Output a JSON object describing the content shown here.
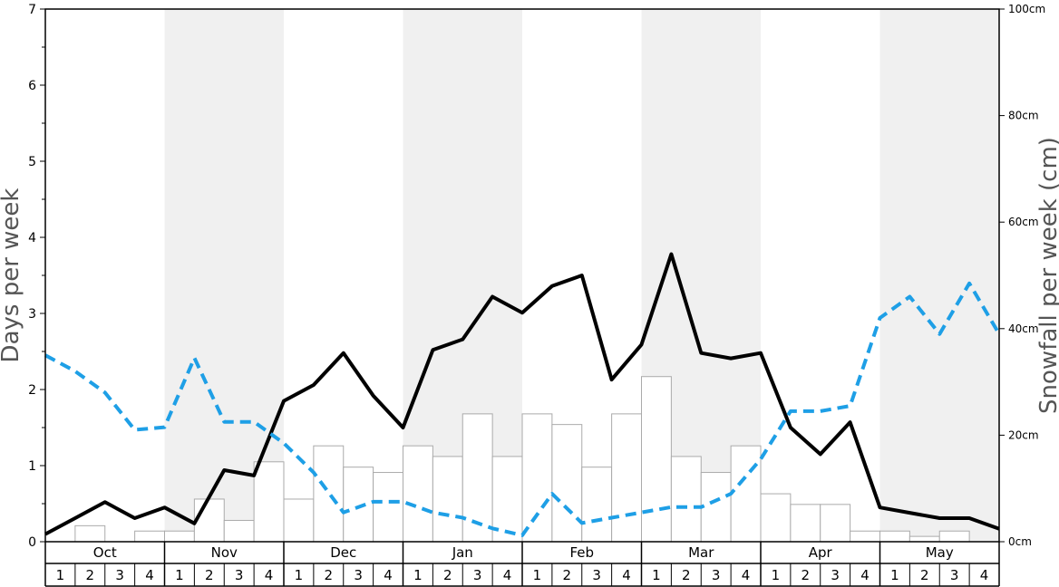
{
  "chart_data": {
    "type": "bar+line",
    "left_axis": {
      "label": "Days per week",
      "range": [
        0,
        7
      ],
      "ticks": [
        "0",
        "1",
        "2",
        "3",
        "4",
        "5",
        "6",
        "7"
      ],
      "minor_ticks": [
        0.5,
        1.5,
        2.5,
        3.5,
        4.5,
        5.5,
        6.5
      ]
    },
    "right_axis": {
      "label": "Snowfall per week (cm)",
      "range": [
        0,
        100
      ],
      "ticks": [
        "0cm",
        "20cm",
        "40cm",
        "60cm",
        "80cm",
        "100cm"
      ]
    },
    "months": [
      "Oct",
      "Nov",
      "Dec",
      "Jan",
      "Feb",
      "Mar",
      "Apr",
      "May"
    ],
    "weeks": [
      "1",
      "2",
      "3",
      "4"
    ],
    "shaded_months": [
      "Nov",
      "Jan",
      "Mar",
      "May"
    ],
    "colors": {
      "shade": "#f0f0f0",
      "bar_stroke": "#aaaaaa",
      "days_line": "#000000",
      "dashed_line": "#1e9fe6"
    },
    "series": [
      {
        "type": "bar",
        "axis": "right",
        "values": [
          0,
          3,
          0,
          2,
          2,
          8,
          4,
          15,
          8,
          18,
          14,
          13,
          18,
          16,
          24,
          16,
          24,
          22,
          14,
          24,
          31,
          16,
          13,
          18,
          9,
          7,
          7,
          2,
          2,
          1,
          2,
          0
        ]
      },
      {
        "type": "line",
        "axis": "left",
        "style": "solid",
        "values": [
          0.1,
          0.31,
          0.52,
          0.31,
          0.45,
          0.24,
          0.94,
          0.87,
          1.85,
          2.06,
          2.48,
          1.92,
          1.5,
          2.52,
          2.66,
          3.22,
          3.01,
          3.36,
          3.5,
          2.13,
          2.59,
          3.78,
          2.48,
          2.41,
          2.48,
          1.5,
          1.15,
          1.57,
          0.45,
          0.38,
          0.31,
          0.31,
          0.17
        ]
      },
      {
        "type": "line",
        "axis": "right",
        "style": "dashed",
        "values": [
          35,
          32,
          28,
          21,
          21.5,
          34.5,
          22.5,
          22.5,
          18.5,
          13,
          5.5,
          7.5,
          7.5,
          5.5,
          4.5,
          2.5,
          1.2,
          9,
          3.5,
          4.5,
          5.5,
          6.5,
          6.5,
          9,
          15.5,
          24.5,
          24.5,
          25.5,
          42,
          46,
          39,
          48.5,
          39
        ]
      }
    ]
  }
}
